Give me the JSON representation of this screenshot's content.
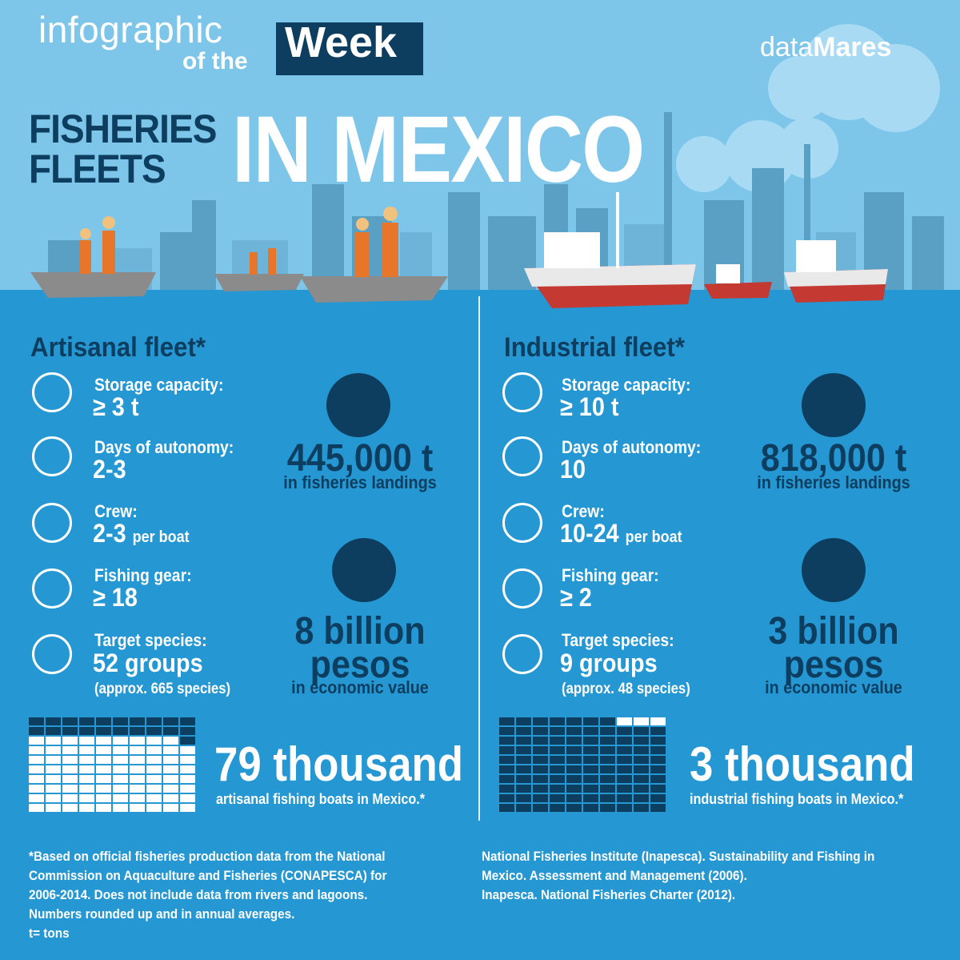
{
  "header": {
    "brand_line1": "infographic",
    "brand_line2": "of the",
    "brand_week": "Week",
    "logo_light": "data",
    "logo_bold": "Mares"
  },
  "title": {
    "small_line1": "FISHERIES",
    "small_line2": "FLEETS",
    "big": "IN MEXICO"
  },
  "artisanal": {
    "title": "Artisanal fleet*",
    "storage_label": "Storage capacity:",
    "storage_value": "≥ 3 t",
    "autonomy_label": "Days of autonomy:",
    "autonomy_value": "2-3",
    "crew_label": "Crew:",
    "crew_value": "2-3",
    "crew_unit": "per boat",
    "gear_label": "Fishing gear:",
    "gear_value": "≥ 18",
    "species_label": "Target species:",
    "species_value": "52 groups",
    "species_note": "(approx. 665 species)",
    "landings_value": "445,000 t",
    "landings_label": "in fisheries landings",
    "economic_value_line1": "8 billion",
    "economic_value_line2": "pesos",
    "economic_label": "in economic value",
    "boats_value": "79 thousand",
    "boats_label": "artisanal fishing boats in Mexico.*",
    "boats_fraction": 0.79
  },
  "industrial": {
    "title": "Industrial fleet*",
    "storage_label": "Storage capacity:",
    "storage_value": "≥ 10 t",
    "autonomy_label": "Days of autonomy:",
    "autonomy_value": "10",
    "crew_label": "Crew:",
    "crew_value": "10-24",
    "crew_unit": "per boat",
    "gear_label": "Fishing gear:",
    "gear_value": "≥ 2",
    "species_label": "Target species:",
    "species_value": "9 groups",
    "species_note": "(approx. 48 species)",
    "landings_value": "818,000 t",
    "landings_label": "in fisheries landings",
    "economic_value_line1": "3 billion",
    "economic_value_line2": "pesos",
    "economic_label": "in economic value",
    "boats_value": "3 thousand",
    "boats_label": "industrial fishing boats in Mexico.*",
    "boats_fraction": 0.03
  },
  "footnotes": {
    "left": [
      "*Based on official fisheries production data from the National",
      "Commission on Aquaculture and Fisheries (CONAPESCA) for",
      "2006-2014. Does not include data from rivers and lagoons.",
      "Numbers rounded up and in annual averages.",
      "t= tons"
    ],
    "right": [
      "National Fisheries Institute (Inapesca). Sustainability and Fishing in",
      "Mexico. Assessment and Management (2006).",
      "Inapesca. National Fisheries Charter (2012)."
    ]
  },
  "colors": {
    "sky": "#7dc6ea",
    "sea": "#2597d3",
    "navy": "#0d3e5f",
    "white": "#ffffff"
  }
}
